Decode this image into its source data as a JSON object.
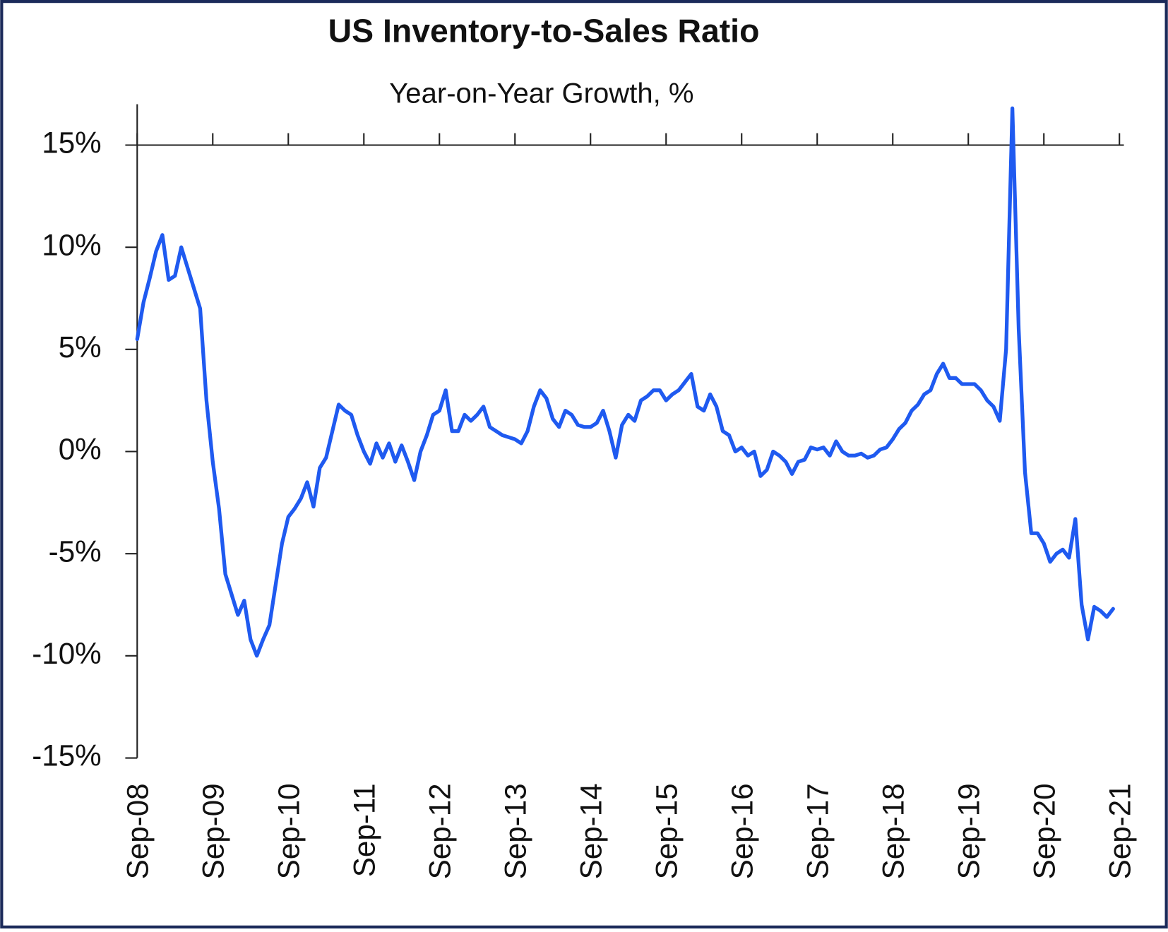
{
  "chart_data": {
    "type": "line",
    "title": "US Inventory-to-Sales Ratio",
    "subtitle": "Year-on-Year Growth, %",
    "categories": [
      "Sep-08",
      null,
      null,
      null,
      null,
      null,
      null,
      null,
      null,
      null,
      null,
      null,
      "Sep-09",
      null,
      null,
      null,
      null,
      null,
      null,
      null,
      null,
      null,
      null,
      null,
      "Sep-10",
      null,
      null,
      null,
      null,
      null,
      null,
      null,
      null,
      null,
      null,
      null,
      "Sep-11",
      null,
      null,
      null,
      null,
      null,
      null,
      null,
      null,
      null,
      null,
      null,
      "Sep-12",
      null,
      null,
      null,
      null,
      null,
      null,
      null,
      null,
      null,
      null,
      null,
      "Sep-13",
      null,
      null,
      null,
      null,
      null,
      null,
      null,
      null,
      null,
      null,
      null,
      "Sep-14",
      null,
      null,
      null,
      null,
      null,
      null,
      null,
      null,
      null,
      null,
      null,
      "Sep-15",
      null,
      null,
      null,
      null,
      null,
      null,
      null,
      null,
      null,
      null,
      null,
      "Sep-16",
      null,
      null,
      null,
      null,
      null,
      null,
      null,
      null,
      null,
      null,
      null,
      "Sep-17",
      null,
      null,
      null,
      null,
      null,
      null,
      null,
      null,
      null,
      null,
      null,
      "Sep-18",
      null,
      null,
      null,
      null,
      null,
      null,
      null,
      null,
      null,
      null,
      null,
      "Sep-19",
      null,
      null,
      null,
      null,
      null,
      null,
      null,
      null,
      null,
      null,
      null,
      "Sep-20",
      null,
      null,
      null,
      null,
      null,
      null,
      null,
      null,
      null,
      null,
      null,
      "Sep-21"
    ],
    "values": [
      5.5,
      7.3,
      8.5,
      9.8,
      10.6,
      8.4,
      8.6,
      10.0,
      9.0,
      8.0,
      7.0,
      2.5,
      -0.5,
      -2.8,
      -6.0,
      -7.0,
      -8.0,
      -7.3,
      -9.2,
      -10.0,
      -9.2,
      -8.5,
      -6.5,
      -4.5,
      -3.2,
      -2.8,
      -2.3,
      -1.5,
      -2.7,
      -0.8,
      -0.3,
      1.0,
      2.3,
      2.0,
      1.8,
      0.8,
      0.0,
      -0.6,
      0.4,
      -0.3,
      0.4,
      -0.5,
      0.3,
      -0.5,
      -1.4,
      0.0,
      0.8,
      1.8,
      2.0,
      3.0,
      1.0,
      1.0,
      1.8,
      1.5,
      1.8,
      2.2,
      1.2,
      1.0,
      0.8,
      0.7,
      0.6,
      0.4,
      1.0,
      2.2,
      3.0,
      2.6,
      1.6,
      1.2,
      2.0,
      1.8,
      1.3,
      1.2,
      1.2,
      1.4,
      2.0,
      1.0,
      -0.3,
      1.3,
      1.8,
      1.5,
      2.5,
      2.7,
      3.0,
      3.0,
      2.5,
      2.8,
      3.0,
      3.4,
      3.8,
      2.2,
      2.0,
      2.8,
      2.2,
      1.0,
      0.8,
      0.0,
      0.2,
      -0.2,
      0.0,
      -1.2,
      -0.9,
      0.0,
      -0.2,
      -0.5,
      -1.1,
      -0.5,
      -0.4,
      0.2,
      0.1,
      0.2,
      -0.2,
      0.5,
      0.0,
      -0.2,
      -0.2,
      -0.1,
      -0.3,
      -0.2,
      0.1,
      0.2,
      0.6,
      1.1,
      1.4,
      2.0,
      2.3,
      2.8,
      3.0,
      3.8,
      4.3,
      3.6,
      3.6,
      3.3,
      3.3,
      3.3,
      3.0,
      2.5,
      2.2,
      1.5,
      5.0,
      16.8,
      6.0,
      -1.0,
      -4.0,
      -4.0,
      -4.5,
      -5.4,
      -5.0,
      -4.8,
      -5.2,
      -3.3,
      -7.5,
      -9.2,
      -7.6,
      -7.8,
      -8.1,
      -7.7,
      null
    ],
    "color": "#1f5af0",
    "ylim": [
      -15,
      17
    ],
    "yticks": [
      {
        "value": -15,
        "label": "-15%"
      },
      {
        "value": -10,
        "label": "-10%"
      },
      {
        "value": -5,
        "label": "-5%"
      },
      {
        "value": 0,
        "label": "0%"
      },
      {
        "value": 5,
        "label": "5%"
      },
      {
        "value": 10,
        "label": "10%"
      },
      {
        "value": 15,
        "label": "15%"
      }
    ],
    "grid": false
  }
}
